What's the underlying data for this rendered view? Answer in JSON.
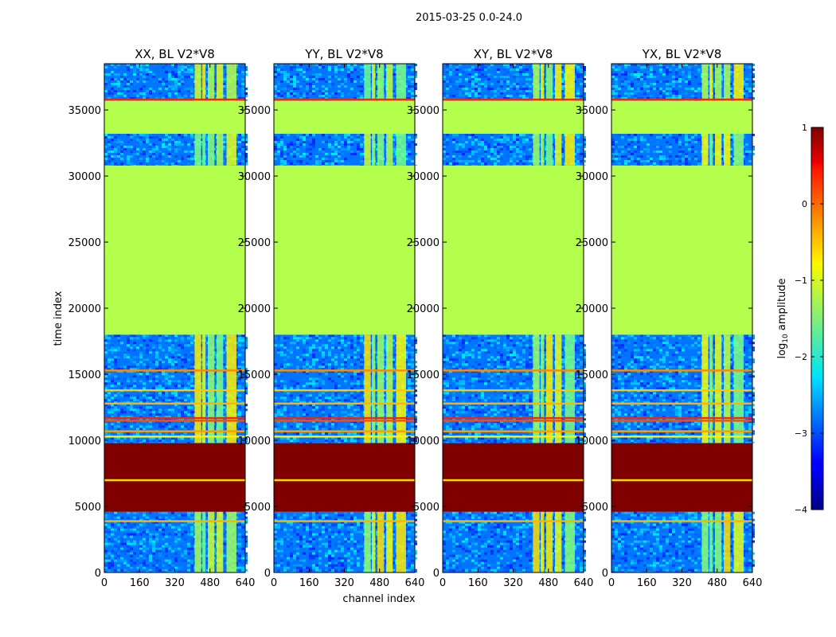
{
  "chart_data": {
    "type": "heatmap",
    "suptitle": "2015-03-25 0.0-24.0",
    "xlabel": "channel index",
    "ylabel": "time index",
    "xlim": [
      0,
      640
    ],
    "ylim": [
      0,
      38500
    ],
    "xticks": [
      0,
      160,
      320,
      480,
      640
    ],
    "yticks": [
      0,
      5000,
      10000,
      15000,
      20000,
      25000,
      30000,
      35000
    ],
    "colorbar": {
      "label": "log10 amplitude",
      "label_main": "log",
      "label_sub": "10",
      "label_rest": " amplitude",
      "range": [
        -4,
        1
      ],
      "ticks": [
        1,
        0,
        -1,
        -2,
        -3,
        -4
      ],
      "tick_labels": [
        "1",
        "0",
        "−1",
        "−2",
        "−3",
        "−4"
      ],
      "colormap": "jet"
    },
    "panels": [
      {
        "title": "XX, BL V2*V8"
      },
      {
        "title": "YY, BL V2*V8"
      },
      {
        "title": "XY, BL V2*V8"
      },
      {
        "title": "YX, BL V2*V8"
      }
    ],
    "time_blocks": [
      {
        "t0": 0,
        "t1": 4600,
        "level": -2.8,
        "kind": "noise"
      },
      {
        "t0": 4600,
        "t1": 9800,
        "level": 1.0,
        "kind": "flat"
      },
      {
        "t0": 9800,
        "t1": 18000,
        "level": -2.8,
        "kind": "noise"
      },
      {
        "t0": 18000,
        "t1": 30800,
        "level": -1.25,
        "kind": "flat"
      },
      {
        "t0": 30800,
        "t1": 33200,
        "level": -2.8,
        "kind": "noise"
      },
      {
        "t0": 33200,
        "t1": 35700,
        "level": -1.25,
        "kind": "flat"
      },
      {
        "t0": 35700,
        "t1": 38500,
        "level": -2.8,
        "kind": "noise"
      }
    ],
    "rfi_channel_bands": [
      [
        410,
        440
      ],
      [
        445,
        460
      ],
      [
        470,
        500
      ],
      [
        510,
        540
      ],
      [
        555,
        600
      ]
    ],
    "horizontal_lines": [
      {
        "t": 11500,
        "level": 0.0
      },
      {
        "t": 11700,
        "level": 0.2
      },
      {
        "t": 10700,
        "level": -0.4
      },
      {
        "t": 10300,
        "level": -0.8
      },
      {
        "t": 15300,
        "level": -0.3
      },
      {
        "t": 13800,
        "level": -0.6
      },
      {
        "t": 12800,
        "level": -0.5
      },
      {
        "t": 35800,
        "level": 0.2
      },
      {
        "t": 7000,
        "level": -0.7
      },
      {
        "t": 3900,
        "level": -0.5
      }
    ]
  }
}
